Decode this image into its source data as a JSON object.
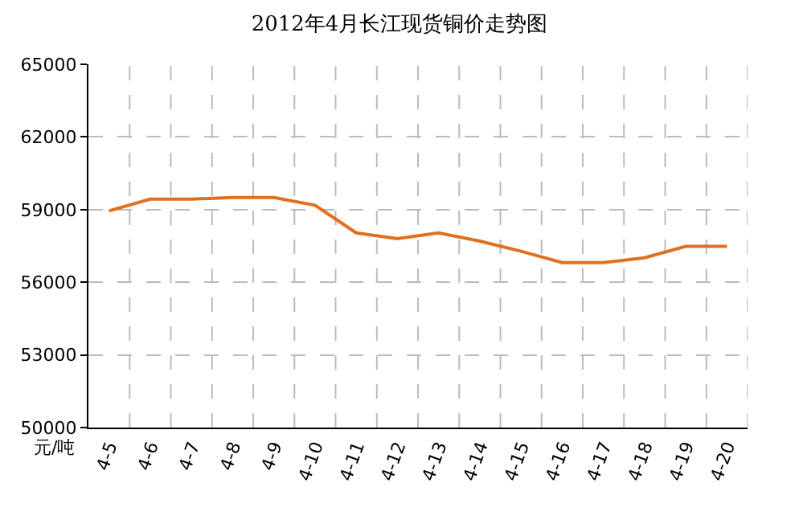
{
  "chart_data": {
    "type": "line",
    "title": "2012年4月长江现货铜价走势图",
    "ylabel": "元/吨",
    "categories": [
      "4-5",
      "4-6",
      "4-7",
      "4-8",
      "4-9",
      "4-10",
      "4-11",
      "4-12",
      "4-13",
      "4-14",
      "4-15",
      "4-16",
      "4-17",
      "4-18",
      "4-19",
      "4-20"
    ],
    "series": [
      {
        "color": "#e07020",
        "values": [
          58950,
          59430,
          59430,
          59500,
          59500,
          59180,
          58040,
          57800,
          58040,
          57700,
          57280,
          56810,
          56810,
          57010,
          57480,
          57480
        ]
      }
    ],
    "ylim": [
      50000,
      65000
    ],
    "yticks": [
      50000,
      53000,
      56000,
      59000,
      62000,
      65000
    ],
    "grid": true,
    "marker": "none",
    "line_style": "solid"
  }
}
